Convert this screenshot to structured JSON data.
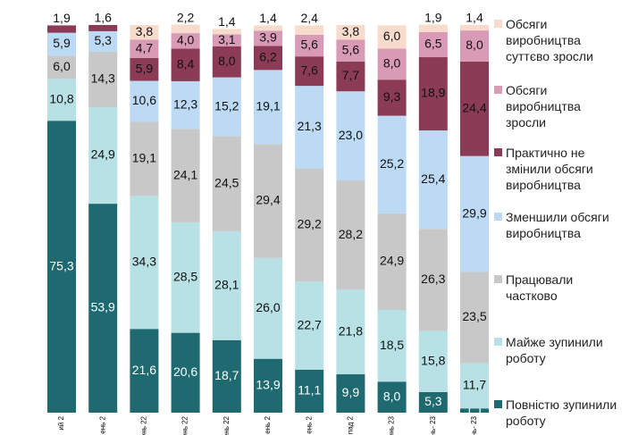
{
  "chart_data": {
    "type": "stacked_bar",
    "categories": [
      "ий 2",
      "ень 2",
      "ень 22",
      "ень 22",
      "ень 22",
      "ень 2",
      "ень 2",
      "пад 2",
      "ень 23",
      "нь- 23",
      "нь- 23"
    ],
    "ylim": [
      0,
      100
    ],
    "series": [
      {
        "name": "Повністю зупинили роботу",
        "color": "#1e6a70",
        "label_color": "#ffffff",
        "values": [
          75.3,
          53.9,
          21.6,
          20.6,
          18.7,
          13.9,
          11.1,
          9.9,
          8.0,
          5.3,
          1.1
        ],
        "value_labels": [
          "75,3",
          "53,9",
          "21,6",
          "20,6",
          "18,7",
          "13,9",
          "11,1",
          "9,9",
          "8,0",
          "5,3",
          "1,1"
        ]
      },
      {
        "name": "Майже зупинили роботу",
        "color": "#b7e1e5",
        "label_color": "#111111",
        "values": [
          10.8,
          24.9,
          34.3,
          28.5,
          28.1,
          26.0,
          22.7,
          21.8,
          18.5,
          15.8,
          11.7
        ],
        "value_labels": [
          "10,8",
          "24,9",
          "34,3",
          "28,5",
          "28,1",
          "26,0",
          "22,7",
          "21,8",
          "18,5",
          "15,8",
          "11,7"
        ]
      },
      {
        "name": "Працювали частково",
        "color": "#c8c8c8",
        "label_color": "#111111",
        "values": [
          6.0,
          14.3,
          19.1,
          24.1,
          24.5,
          29.4,
          29.2,
          28.2,
          24.9,
          26.3,
          23.5
        ],
        "value_labels": [
          "6,0",
          "14,3",
          "19,1",
          "24,1",
          "24,5",
          "29,4",
          "29,2",
          "28,2",
          "24,9",
          "26,3",
          "23,5"
        ]
      },
      {
        "name": "Зменшили обсяги виробництва",
        "color": "#bcdaf3",
        "label_color": "#111111",
        "values": [
          5.9,
          5.3,
          10.6,
          12.3,
          15.2,
          19.1,
          21.3,
          23.0,
          25.2,
          25.4,
          29.9
        ],
        "value_labels": [
          "5,9",
          "5,3",
          "10,6",
          "12,3",
          "15,2",
          "19,1",
          "21,3",
          "23,0",
          "25,2",
          "25,4",
          "29,9"
        ]
      },
      {
        "name": "Практично не змінили обсяги виробництва",
        "color": "#8c3b57",
        "label_color": "#111111",
        "values": [
          1.9,
          1.6,
          5.9,
          8.4,
          8.0,
          6.2,
          7.6,
          7.7,
          9.3,
          18.9,
          24.4
        ],
        "value_labels": [
          "1,9",
          "1,6",
          "5,9",
          "8,4",
          "8,0",
          "6,2",
          "7,6",
          "7,7",
          "9,3",
          "18,9",
          "24,4"
        ]
      },
      {
        "name": "Обсяги виробництва зросли",
        "color": "#d99ab5",
        "label_color": "#111111",
        "values": [
          null,
          null,
          4.7,
          4.0,
          3.1,
          3.9,
          5.6,
          5.6,
          8.0,
          6.5,
          8.0
        ],
        "value_labels": [
          null,
          null,
          "4,7",
          "4,0",
          "3,1",
          "3,9",
          "5,6",
          "5,6",
          "8,0",
          "6,5",
          "8,0"
        ]
      },
      {
        "name": "Обсяги виробництва суттєво зросли",
        "color": "#f7dccd",
        "label_color": "#111111",
        "values": [
          null,
          null,
          3.8,
          2.2,
          1.4,
          1.4,
          2.4,
          3.8,
          6.0,
          1.9,
          1.4
        ],
        "value_labels": [
          null,
          null,
          "3,8",
          "2,2",
          "1,4",
          "1,4",
          "2,4",
          "3,8",
          "6,0",
          "1,9",
          "1,4"
        ]
      }
    ]
  }
}
